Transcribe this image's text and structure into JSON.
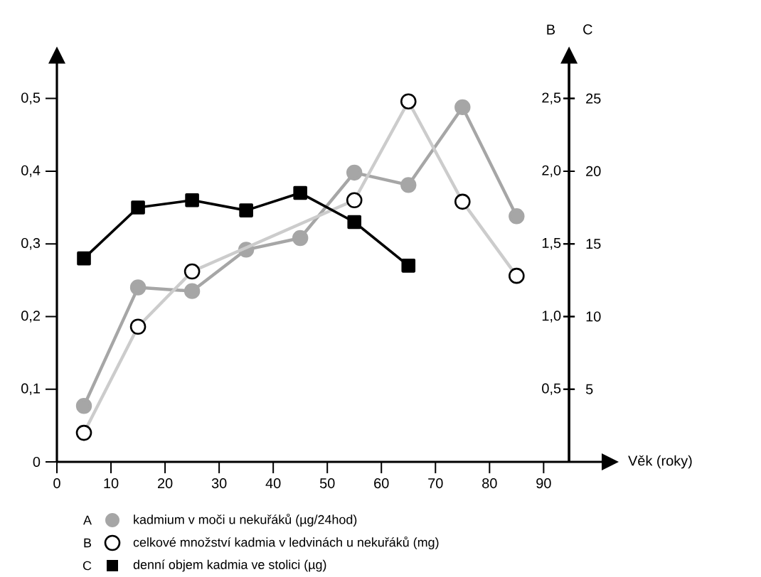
{
  "chart_data": {
    "type": "line",
    "xlabel": "Věk (roky)",
    "y2label": "B",
    "y3label": "C",
    "annotations": [
      "A",
      "B",
      "C"
    ],
    "x": [
      5,
      15,
      25,
      35,
      45,
      55,
      65,
      75,
      85
    ],
    "xlim": [
      0,
      101
    ],
    "xticks": [
      0,
      10,
      20,
      30,
      40,
      50,
      60,
      70,
      80,
      90
    ],
    "ylim": [
      0,
      0.55
    ],
    "yticks": [
      0,
      {
        "value": 0.1,
        "label": "0,1"
      },
      {
        "value": 0.2,
        "label": "0,2"
      },
      {
        "value": 0.3,
        "label": "0,3"
      },
      {
        "value": 0.4,
        "label": "0,4"
      },
      {
        "value": 0.5,
        "label": "0,5"
      }
    ],
    "y2lim": [
      0,
      2.75
    ],
    "y2ticks": [
      {
        "value": 0.5,
        "label": "0,5"
      },
      {
        "value": 1.0,
        "label": "1,0"
      },
      {
        "value": 1.5,
        "label": "1,5"
      },
      {
        "value": 2.0,
        "label": "2,0"
      },
      {
        "value": 2.5,
        "label": "2,5"
      }
    ],
    "y3lim": [
      0,
      27.5
    ],
    "y3ticks": [
      5,
      10,
      15,
      20,
      25
    ],
    "legend": "bottom",
    "series": [
      {
        "name": "kadmium v moči u nekuřáků (µg/24hod)",
        "color": "#a6a6a6",
        "marker": "circle",
        "values": [
          0.077,
          0.24,
          0.235,
          0.292,
          0.308,
          0.398,
          0.381,
          0.488,
          0.338
        ]
      },
      {
        "name": "celkové množství kadmia v ledvinách u nekuřáků  (mg)",
        "color": "#cccccc",
        "marker": "circle",
        "axis": "y2",
        "values": [
          0.2,
          0.93,
          1.31,
          null,
          null,
          1.8,
          2.48,
          1.79,
          1.28
        ]
      },
      {
        "name": "denní objem kadmia ve stolici (µg)",
        "color": "#000000",
        "marker": "square",
        "axis": "y3",
        "values": [
          14.0,
          17.5,
          18.0,
          17.3,
          18.5,
          16.5,
          13.5,
          null,
          null
        ]
      }
    ]
  }
}
